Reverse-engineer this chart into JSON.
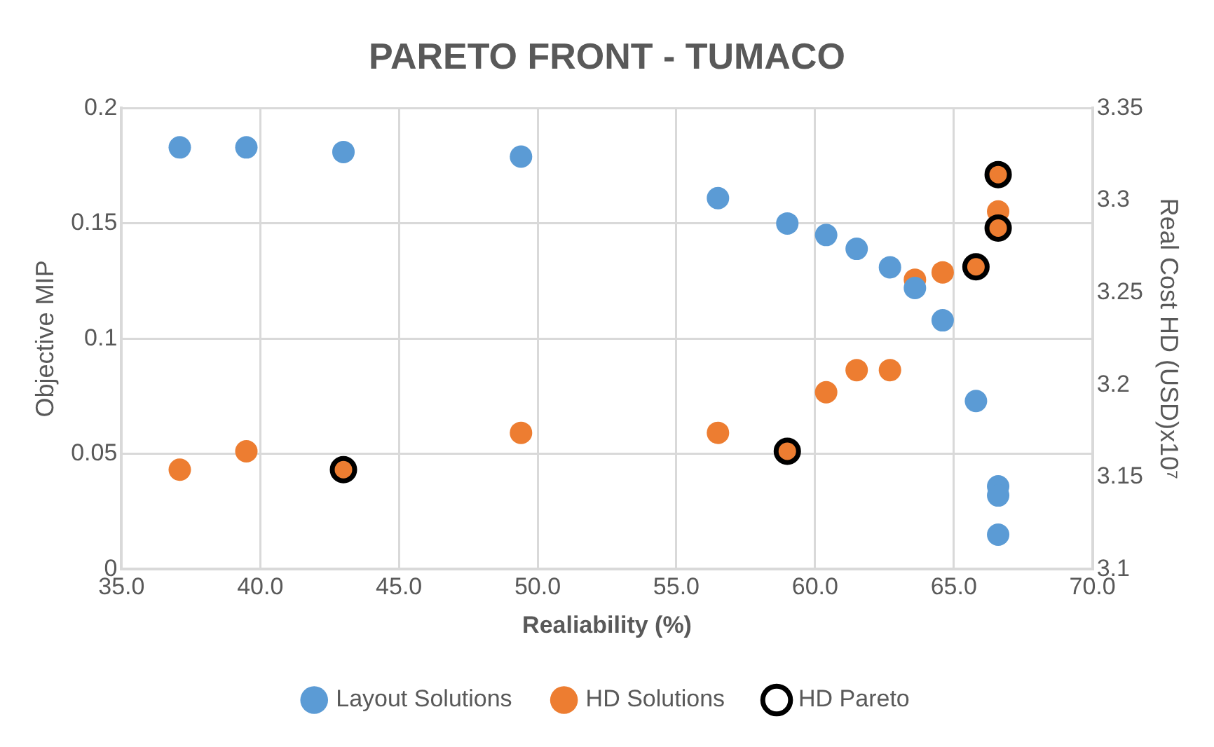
{
  "chart_data": {
    "type": "scatter",
    "title": "PARETO FRONT - TUMACO",
    "xlabel": "Realiability (%)",
    "ylabel": "Objective MIP",
    "y2label": "Real Cost HD (USD)x10⁷",
    "xlim": [
      35,
      70
    ],
    "xticks": [
      {
        "value": 35,
        "label": "35.0"
      },
      {
        "value": 40,
        "label": "40.0"
      },
      {
        "value": 45,
        "label": "45.0"
      },
      {
        "value": 50,
        "label": "50.0"
      },
      {
        "value": 55,
        "label": "55.0"
      },
      {
        "value": 60,
        "label": "60.0"
      },
      {
        "value": 65,
        "label": "65.0"
      },
      {
        "value": 70,
        "label": "70.0"
      }
    ],
    "ylim": [
      0,
      0.2
    ],
    "yticks": [
      0,
      0.05,
      0.1,
      0.15,
      0.2
    ],
    "y2lim": [
      3.1,
      3.35
    ],
    "y2ticks": [
      3.1,
      3.15,
      3.2,
      3.25,
      3.3,
      3.35
    ],
    "grid": true,
    "legend": "bottom",
    "marker": "circle",
    "series": [
      {
        "name": "Layout Solutions",
        "color": "#5b9bd5",
        "x": [
          37.1,
          39.5,
          43.0,
          49.4,
          56.5,
          59.0,
          60.4,
          61.5,
          62.7,
          63.6,
          64.6,
          65.8,
          66.6,
          66.6,
          66.6
        ],
        "values": [
          0.183,
          0.183,
          0.181,
          0.179,
          0.161,
          0.15,
          0.145,
          0.139,
          0.131,
          0.122,
          0.108,
          0.073,
          0.036,
          0.032,
          0.015
        ]
      },
      {
        "name": "HD Solutions",
        "color": "#ed7d31",
        "axis": "y2",
        "x": [
          37.1,
          39.5,
          43.0,
          49.4,
          56.5,
          59.0,
          60.4,
          61.5,
          62.7,
          63.6,
          64.6,
          65.8,
          66.6,
          66.6,
          66.6
        ],
        "values": [
          3.154,
          3.164,
          3.154,
          3.174,
          3.174,
          3.164,
          3.196,
          3.208,
          3.208,
          3.257,
          3.261,
          3.264,
          3.294,
          3.285,
          3.314
        ]
      },
      {
        "name": "HD Pareto",
        "color": "#000000",
        "axis": "y2",
        "x": [
          43.0,
          59.0,
          65.8,
          66.6,
          66.6
        ],
        "values": [
          3.154,
          3.164,
          3.264,
          3.285,
          3.314
        ]
      }
    ]
  }
}
